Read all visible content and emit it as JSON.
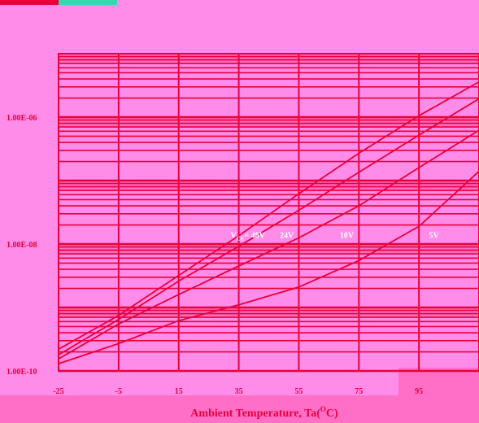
{
  "chart_data": {
    "type": "line",
    "title": "",
    "xlabel": "Ambient Temperature, Ta(°C)",
    "xlabel_parts": {
      "main": "Ambient Temperature, Ta(",
      "sup": "O",
      "end": "C)"
    },
    "ylabel": "",
    "y_scale": "log",
    "ylim": [
      1e-10,
      1e-05
    ],
    "xlim": [
      -25,
      115
    ],
    "x_ticks": [
      -25,
      -5,
      15,
      35,
      55,
      75,
      95
    ],
    "x_tick_labels": [
      "-25",
      "-5",
      "15",
      "35",
      "55",
      "75",
      "95"
    ],
    "y_tick_labels": [
      {
        "value": 1e-06,
        "label": "1.00E-06"
      },
      {
        "value": 1e-08,
        "label": "1.00E-08"
      },
      {
        "value": 1e-10,
        "label": "1.00E-10"
      }
    ],
    "grid": true,
    "series": [
      {
        "name": "VCE= 48V",
        "label_main": "V",
        "label_sub": "CE",
        "label_tail": "= 48V",
        "label_at": {
          "x": 38,
          "y": 1.4e-08
        },
        "x": [
          -25,
          -5,
          15,
          35,
          55,
          75,
          95,
          115
        ],
        "y": [
          2.2e-10,
          7.5e-10,
          3.2e-09,
          1.35e-08,
          6.2e-08,
          2.7e-07,
          1.05e-06,
          3.6e-06
        ]
      },
      {
        "name": "24V",
        "label_main": "24V",
        "label_sub": "",
        "label_tail": "",
        "label_at": {
          "x": 51,
          "y": 1.4e-08
        },
        "x": [
          -25,
          -5,
          15,
          35,
          55,
          75,
          95,
          115
        ],
        "y": [
          1.8e-10,
          6.5e-10,
          2.6e-09,
          9.2e-09,
          3.4e-08,
          1.35e-07,
          5.2e-07,
          1.95e-06
        ]
      },
      {
        "name": "10V",
        "label_main": "10V",
        "label_sub": "",
        "label_tail": "",
        "label_at": {
          "x": 71,
          "y": 1.4e-08
        },
        "x": [
          -25,
          -5,
          15,
          35,
          55,
          75,
          95,
          115
        ],
        "y": [
          1.55e-10,
          5.5e-10,
          1.6e-09,
          4.5e-09,
          1.25e-08,
          4e-08,
          1.6e-07,
          6.2e-07
        ]
      },
      {
        "name": "5V",
        "label_main": "5V",
        "label_sub": "",
        "label_tail": "",
        "label_at": {
          "x": 100,
          "y": 1.4e-08
        },
        "x": [
          -25,
          -5,
          15,
          35,
          55,
          75,
          95,
          115
        ],
        "y": [
          1.3e-10,
          2.7e-10,
          6.2e-10,
          1.1e-09,
          2.1e-09,
          5.5e-09,
          1.9e-08,
          1.4e-07
        ]
      }
    ],
    "colors": {
      "background": "#ff8ce8",
      "grid": "#e8003a",
      "text": "#e8003a",
      "bottom_band": "#ff6fc8"
    }
  }
}
